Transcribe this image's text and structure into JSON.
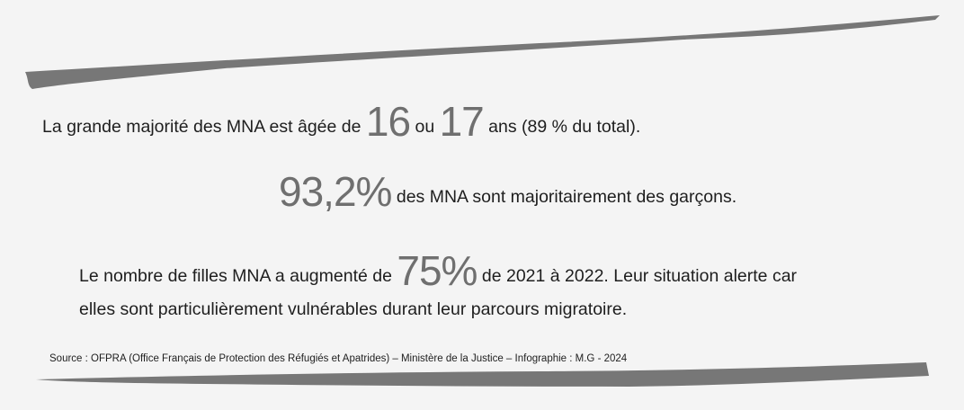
{
  "line1": {
    "before": "La grande majorité des MNA est âgée de ",
    "num1": "16",
    "mid": " ou ",
    "num2": "17",
    "after": " ans (89 % du total)."
  },
  "line2": {
    "num": "93,2%",
    "after": " des MNA sont majoritairement des garçons."
  },
  "line3": {
    "before": "Le nombre de filles MNA a augmenté de ",
    "num": "75%",
    "after": " de 2021 à 2022. Leur situation alerte car"
  },
  "line4": "elles sont particulièrement vulnérables durant leur parcours migratoire.",
  "source": "Source : OFPRA (Office Français de Protection des Réfugiés et Apatrides) – Ministère de la Justice – Infographie : M.G - 2024",
  "colors": {
    "background": "#f4f4f4",
    "accent": "#6f6f6f",
    "brush": "#777777"
  }
}
